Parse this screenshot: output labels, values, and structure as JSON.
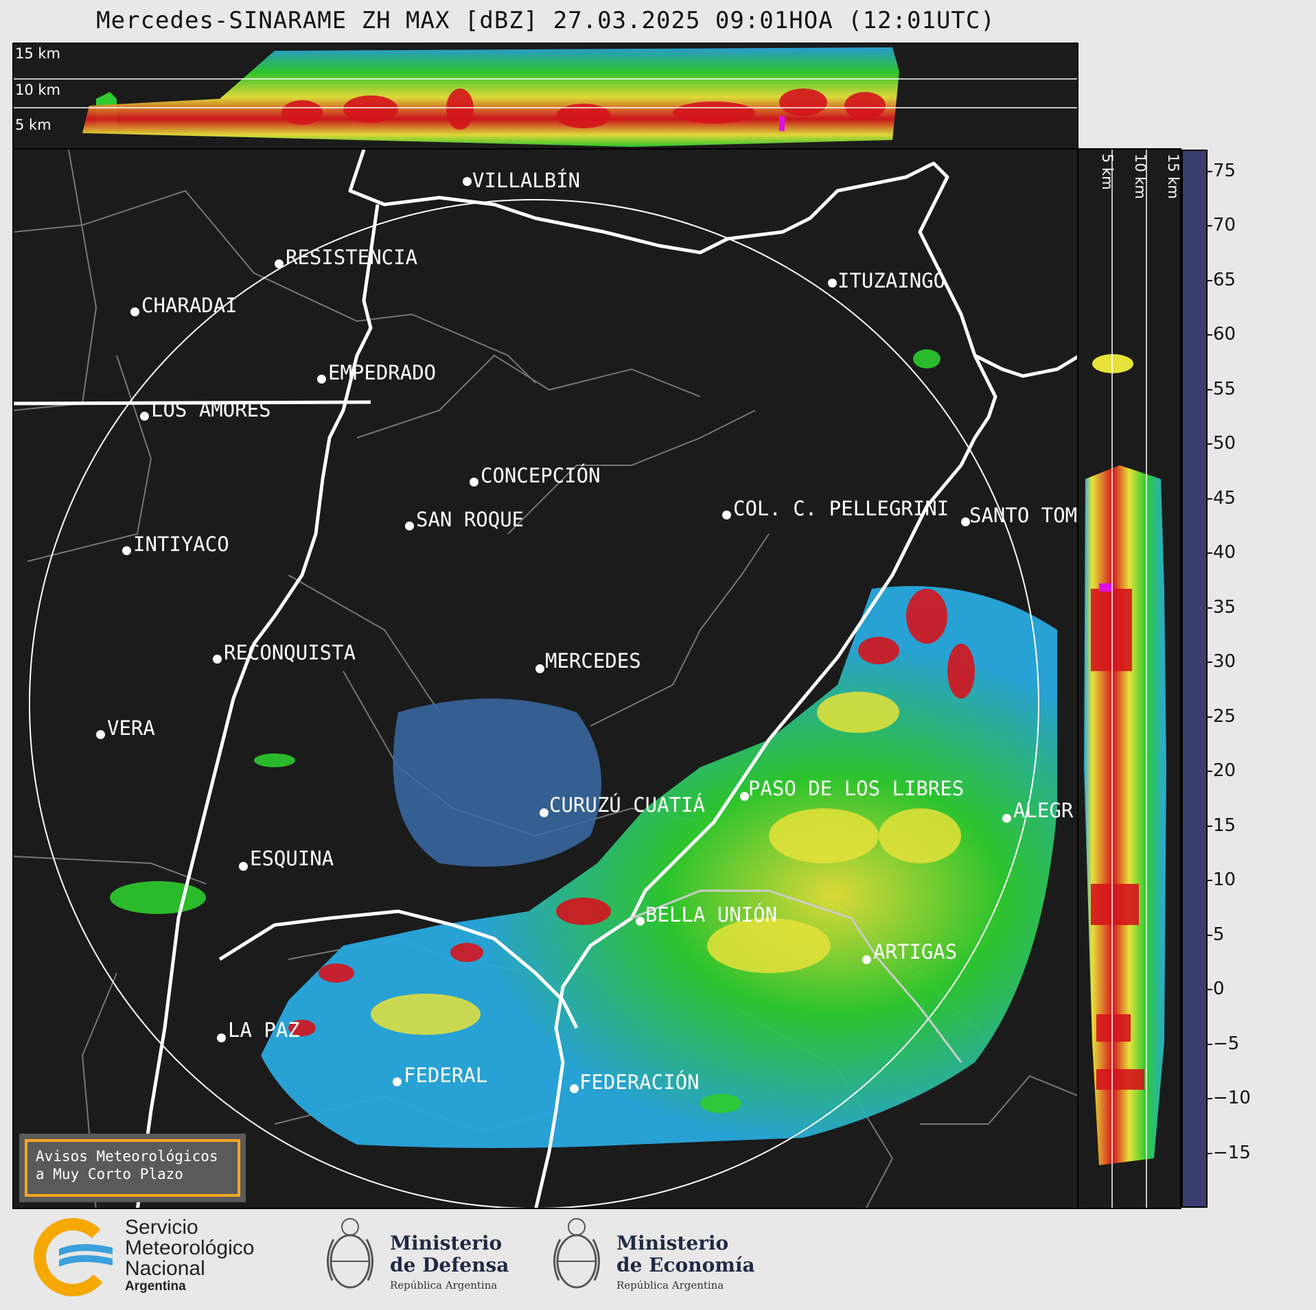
{
  "title": "Mercedes-SINARAME ZH MAX [dBZ] 27.03.2025 09:01HOA (12:01UTC)",
  "height_labels": {
    "h15": "15 km",
    "h10": "10 km",
    "h5": "5 km"
  },
  "cities": [
    {
      "id": "villalbin",
      "name": "VILLALBÍN"
    },
    {
      "id": "resistencia",
      "name": "RESISTENCIA"
    },
    {
      "id": "charadai",
      "name": "CHARADAI"
    },
    {
      "id": "ituzaingo",
      "name": "ITUZAINGÓ"
    },
    {
      "id": "empedrado",
      "name": "EMPEDRADO"
    },
    {
      "id": "los-amores",
      "name": "LOS AMORES"
    },
    {
      "id": "concepcion",
      "name": "CONCEPCIÓN"
    },
    {
      "id": "col-pellegrini",
      "name": "COL. C. PELLEGRINI"
    },
    {
      "id": "santo-tome",
      "name": "SANTO TOM"
    },
    {
      "id": "san-roque",
      "name": "SAN ROQUE"
    },
    {
      "id": "intiyaco",
      "name": "INTIYACO"
    },
    {
      "id": "mercedes",
      "name": "MERCEDES"
    },
    {
      "id": "reconquista",
      "name": "RECONQUISTA"
    },
    {
      "id": "vera",
      "name": "VERA"
    },
    {
      "id": "curuzu-cuatia",
      "name": "CURUZÚ CUATIÁ"
    },
    {
      "id": "paso-libres",
      "name": "PASO DE LOS LIBRES"
    },
    {
      "id": "alegr",
      "name": "ALEGR"
    },
    {
      "id": "esquina",
      "name": "ESQUINA"
    },
    {
      "id": "bella-union",
      "name": "BELLA UNIÓN"
    },
    {
      "id": "artigas",
      "name": "ARTIGAS"
    },
    {
      "id": "la-paz",
      "name": "LA PAZ"
    },
    {
      "id": "federal",
      "name": "FEDERAL"
    },
    {
      "id": "federacion",
      "name": "FEDERACIÓN"
    }
  ],
  "colorbar": {
    "unit": "dBZ",
    "ticks": [
      "75",
      "70",
      "65",
      "60",
      "55",
      "50",
      "45",
      "40",
      "35",
      "30",
      "25",
      "20",
      "15",
      "10",
      "5",
      "0",
      "−5",
      "−10",
      "−15"
    ],
    "range": [
      -20,
      77
    ],
    "colors": {
      "light_blue": "#29a8de",
      "green": "#2ecc2e",
      "yellow": "#e6e23a",
      "orange": "#e8901a",
      "red": "#d4141c",
      "magenta": "#e010e0",
      "white": "#ffffff",
      "mint": "#8fe0c0"
    }
  },
  "warning_box": {
    "line1": "Avisos Meteorológicos",
    "line2": "a Muy Corto Plazo"
  },
  "footer": {
    "smn": {
      "line1": "Servicio",
      "line2": "Meteorológico",
      "line3": "Nacional",
      "line4": "Argentina"
    },
    "defensa": {
      "line1": "Ministerio",
      "line2": "de Defensa",
      "sub": "República Argentina"
    },
    "economia": {
      "line1": "Ministerio",
      "line2": "de Economía",
      "sub": "República Argentina"
    }
  }
}
